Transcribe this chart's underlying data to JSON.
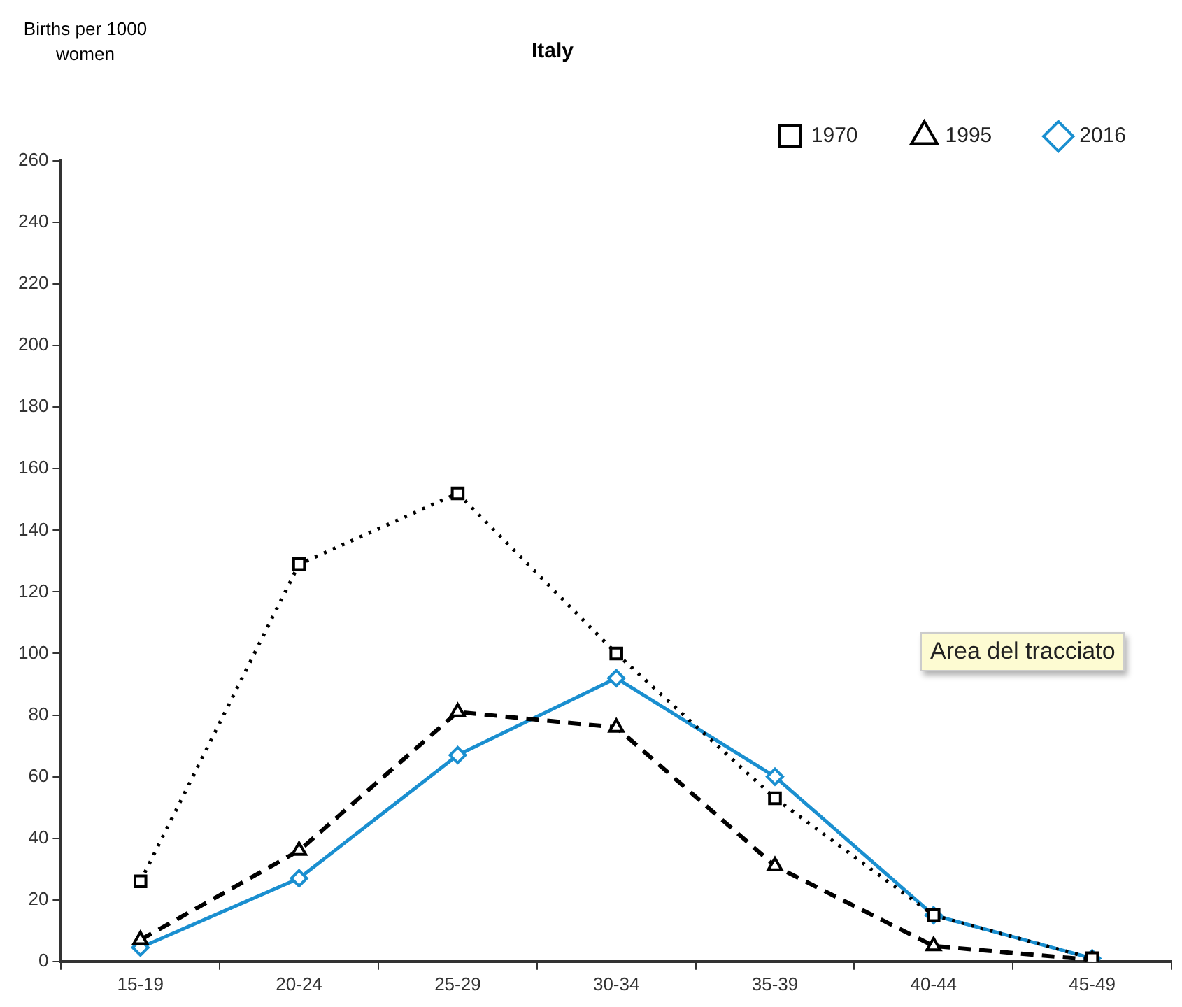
{
  "chart_data": {
    "type": "line",
    "title": "Italy",
    "ylabel": "Births per 1000 women",
    "categories": [
      "15-19",
      "20-24",
      "25-29",
      "30-34",
      "35-39",
      "40-44",
      "45-49"
    ],
    "series": [
      {
        "name": "1970",
        "color": "#000000",
        "marker": "square",
        "line_style": "dotted",
        "values": [
          26,
          129,
          152,
          100,
          53,
          15,
          1
        ]
      },
      {
        "name": "1995",
        "color": "#000000",
        "marker": "triangle",
        "line_style": "dashed",
        "values": [
          7,
          36,
          81,
          76,
          31,
          5,
          0.5
        ]
      },
      {
        "name": "2016",
        "color": "#1a8fd0",
        "marker": "diamond",
        "line_style": "solid",
        "values": [
          4.5,
          27,
          67,
          92,
          60,
          15,
          1
        ]
      }
    ],
    "ylim": [
      0,
      260
    ],
    "yticks": [
      0,
      20,
      40,
      60,
      80,
      100,
      120,
      140,
      160,
      180,
      200,
      220,
      240,
      260
    ],
    "grid": false,
    "legend": "top right",
    "annotations": [
      "Area del tracciato"
    ]
  }
}
